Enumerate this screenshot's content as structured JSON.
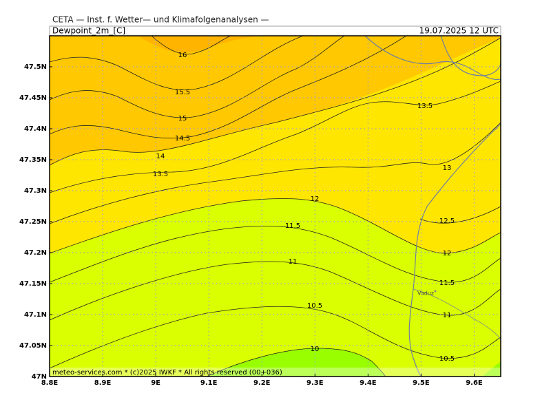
{
  "header": {
    "title": "CETA — Inst. f. Wetter— und Klimafolgenanalysen —",
    "variable": "Dewpoint_2m_[C]",
    "valid_time": "19.07.2025 12 UTC"
  },
  "chart_data": {
    "type": "contour",
    "xlim": [
      8.8,
      9.65
    ],
    "ylim": [
      47,
      47.55
    ],
    "xticks": [
      {
        "value": 8.8,
        "label": "8.8E"
      },
      {
        "value": 8.9,
        "label": "8.9E"
      },
      {
        "value": 9.0,
        "label": "9E"
      },
      {
        "value": 9.1,
        "label": "9.1E"
      },
      {
        "value": 9.2,
        "label": "9.2E"
      },
      {
        "value": 9.3,
        "label": "9.3E"
      },
      {
        "value": 9.4,
        "label": "9.4E"
      },
      {
        "value": 9.5,
        "label": "9.5E"
      },
      {
        "value": 9.6,
        "label": "9.6E"
      }
    ],
    "yticks": [
      {
        "value": 47,
        "label": "47N"
      },
      {
        "value": 47.05,
        "label": "47.05N"
      },
      {
        "value": 47.1,
        "label": "47.1N"
      },
      {
        "value": 47.15,
        "label": "47.15N"
      },
      {
        "value": 47.2,
        "label": "47.2N"
      },
      {
        "value": 47.25,
        "label": "47.25N"
      },
      {
        "value": 47.3,
        "label": "47.3N"
      },
      {
        "value": 47.35,
        "label": "47.35N"
      },
      {
        "value": 47.4,
        "label": "47.4N"
      },
      {
        "value": 47.45,
        "label": "47.45N"
      },
      {
        "value": 47.5,
        "label": "47.5N"
      }
    ],
    "grid": true,
    "contour_labels": [
      16,
      15.5,
      15,
      14.5,
      14,
      13.5,
      13.5,
      13,
      12,
      12.5,
      11.5,
      12,
      11,
      11.5,
      10.5,
      11,
      10,
      10.5
    ],
    "place_labels": [
      "Vaduz"
    ],
    "footer": "meteo-services.com * (c)2025 IWKF * All rights reserved (00+036)"
  }
}
